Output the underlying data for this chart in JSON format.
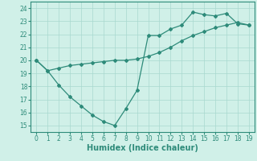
{
  "line1_x": [
    0,
    1,
    2,
    3,
    4,
    5,
    6,
    7,
    8,
    9,
    10,
    11,
    12,
    13,
    14,
    15,
    16,
    17,
    18,
    19
  ],
  "line1_y": [
    20.0,
    19.2,
    19.4,
    19.6,
    19.7,
    19.8,
    19.9,
    20.0,
    20.0,
    20.1,
    20.3,
    20.6,
    21.0,
    21.5,
    21.9,
    22.2,
    22.5,
    22.7,
    22.9,
    22.7
  ],
  "line2_x": [
    0,
    1,
    2,
    3,
    4,
    5,
    6,
    7,
    8,
    9,
    10,
    11,
    12,
    13,
    14,
    15,
    16,
    17,
    18,
    19
  ],
  "line2_y": [
    20.0,
    19.2,
    18.1,
    17.2,
    16.5,
    15.8,
    15.3,
    15.0,
    16.3,
    17.7,
    21.9,
    21.9,
    22.4,
    22.7,
    23.7,
    23.5,
    23.4,
    23.6,
    22.8,
    22.7
  ],
  "color": "#2e8b7a",
  "bg_color": "#d0f0e8",
  "grid_color": "#a8d8cf",
  "xlabel": "Humidex (Indice chaleur)",
  "xlim": [
    -0.5,
    19.5
  ],
  "ylim": [
    14.5,
    24.5
  ],
  "yticks": [
    15,
    16,
    17,
    18,
    19,
    20,
    21,
    22,
    23,
    24
  ],
  "xticks": [
    0,
    1,
    2,
    3,
    4,
    5,
    6,
    7,
    8,
    9,
    10,
    11,
    12,
    13,
    14,
    15,
    16,
    17,
    18,
    19
  ],
  "marker": "D",
  "markersize": 2.0,
  "linewidth": 0.9,
  "xlabel_fontsize": 7,
  "tick_fontsize": 5.5
}
